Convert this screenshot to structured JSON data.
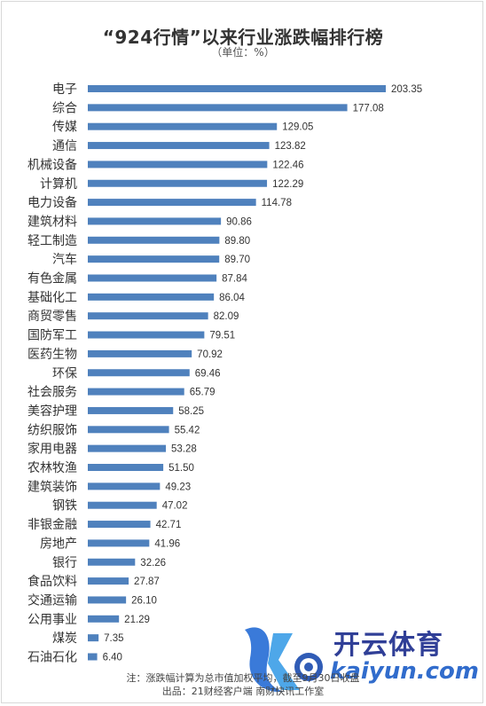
{
  "header": {
    "title": "“924行情”以来行业涨跌幅排行榜",
    "subtitle": "（单位：%）"
  },
  "footer": {
    "note": "注：涨跌幅计算为总市值加权平均，截至9月30日收盘",
    "source": "出品：21财经客户端 南财快讯工作室"
  },
  "watermark": {
    "brand_cn": "开云体育",
    "brand_en": "kaiyun.com",
    "letter": "K"
  },
  "colors": {
    "bar": "#4f81bd",
    "text": "#333333"
  },
  "chart_data": {
    "type": "bar",
    "orientation": "horizontal",
    "title": "“924行情”以来行业涨跌幅排行榜",
    "subtitle": "（单位：%）",
    "xlabel": "",
    "ylabel": "",
    "xlim": [
      0,
      215
    ],
    "grid": false,
    "legend": "none",
    "categories": [
      "电子",
      "综合",
      "传媒",
      "通信",
      "机械设备",
      "计算机",
      "电力设备",
      "建筑材料",
      "轻工制造",
      "汽车",
      "有色金属",
      "基础化工",
      "商贸零售",
      "国防军工",
      "医药生物",
      "环保",
      "社会服务",
      "美容护理",
      "纺织服饰",
      "家用电器",
      "农林牧渔",
      "建筑装饰",
      "钢铁",
      "非银金融",
      "房地产",
      "银行",
      "食品饮料",
      "交通运输",
      "公用事业",
      "煤炭",
      "石油石化"
    ],
    "values": [
      203.35,
      177.08,
      129.05,
      123.82,
      122.46,
      122.29,
      114.78,
      90.86,
      89.8,
      89.7,
      87.84,
      86.04,
      82.09,
      79.51,
      70.92,
      69.46,
      65.79,
      58.25,
      55.42,
      53.28,
      51.5,
      49.23,
      47.02,
      42.71,
      41.96,
      32.26,
      27.87,
      26.1,
      21.29,
      7.35,
      6.4
    ],
    "value_labels": [
      "203.35",
      "177.08",
      "129.05",
      "123.82",
      "122.46",
      "122.29",
      "114.78",
      "90.86",
      "89.80",
      "89.70",
      "87.84",
      "86.04",
      "82.09",
      "79.51",
      "70.92",
      "69.46",
      "65.79",
      "58.25",
      "55.42",
      "53.28",
      "51.50",
      "49.23",
      "47.02",
      "42.71",
      "41.96",
      "32.26",
      "27.87",
      "26.10",
      "21.29",
      "7.35",
      "6.40"
    ]
  }
}
